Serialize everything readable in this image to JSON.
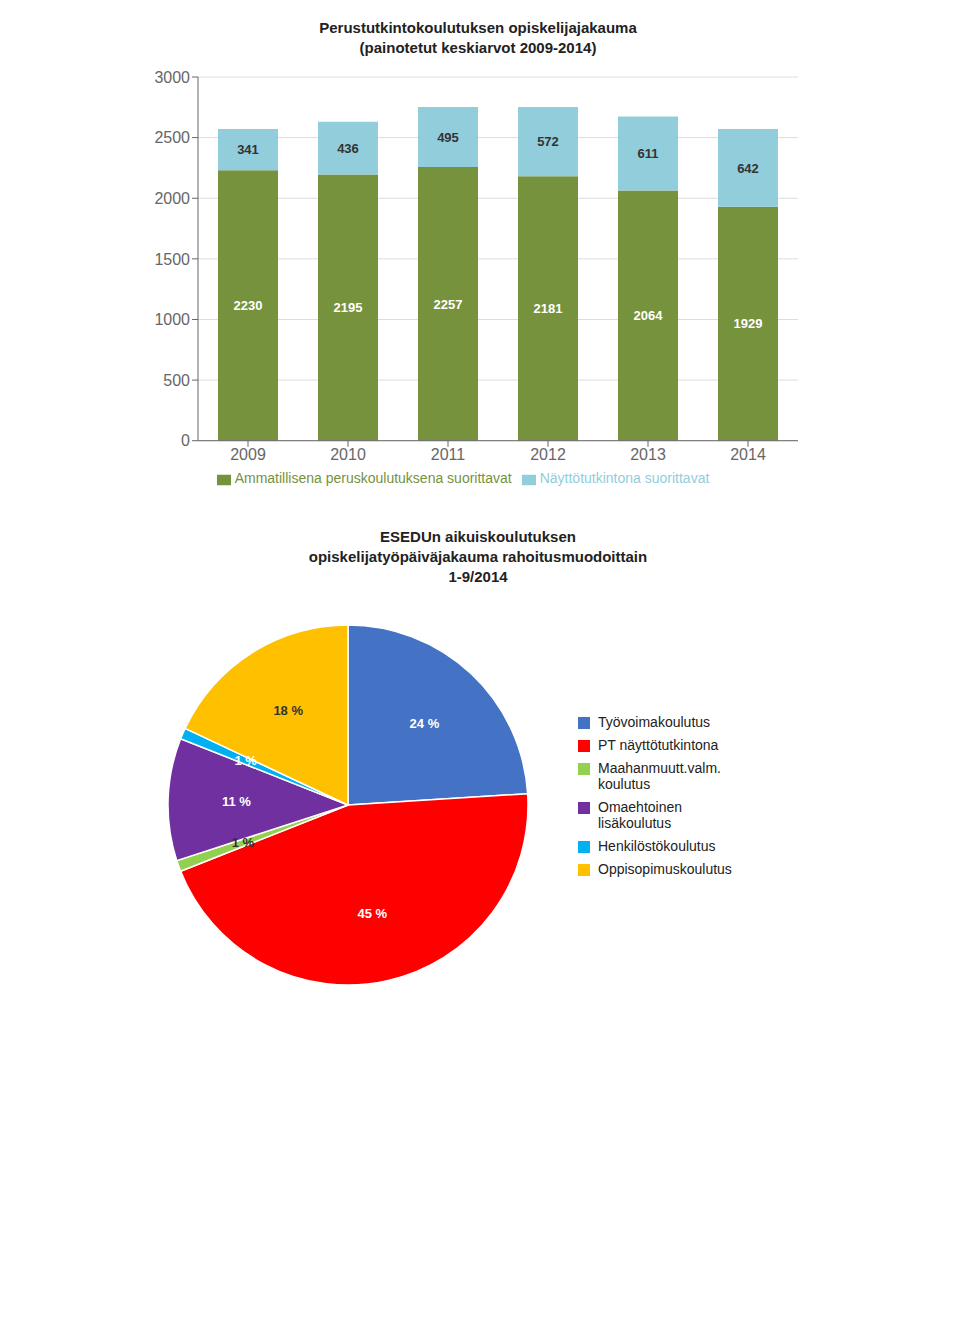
{
  "chart_data": [
    {
      "type": "bar",
      "title": "Perustutkintokoulutuksen opiskelijajakauma\n(painotetut keskiarvot 2009-2014)",
      "categories": [
        "2009",
        "2010",
        "2011",
        "2012",
        "2013",
        "2014"
      ],
      "series": [
        {
          "name": "Ammatillisena peruskoulutuksena suorittavat",
          "color": "#76923C",
          "values": [
            2230,
            2195,
            2257,
            2181,
            2064,
            1929
          ]
        },
        {
          "name": "Näyttötutkintona suorittavat",
          "color": "#92CDDC",
          "values": [
            341,
            436,
            495,
            572,
            611,
            642
          ]
        }
      ],
      "stacked": true,
      "ylim": [
        0,
        3000
      ],
      "yticks": [
        0,
        500,
        1000,
        1500,
        2000,
        2500,
        3000
      ],
      "grid": true,
      "data_labels": true,
      "legend": "bottom"
    },
    {
      "type": "pie",
      "title": "ESEDUn aikuiskoulutuksen\nopiskelijatyöpäiväjakauma rahoitusmuodoittain\n1-9/2014",
      "categories": [
        "Työvoimakoulutus",
        "PT näyttötutkintona",
        "Maahanmuutt.valm.\nkoulutus",
        "Omaehtoinen\nlisäkoulutus",
        "Henkilöstökoulutus",
        "Oppisopimuskoulutus"
      ],
      "values": [
        24,
        45,
        1,
        11,
        1,
        18
      ],
      "value_labels": [
        "24 %",
        "45 %",
        "1 %",
        "11 %",
        "1 %",
        "18 %"
      ],
      "colors": [
        "#4472C4",
        "#FF0000",
        "#92D050",
        "#7030A0",
        "#00B0F0",
        "#FFC000"
      ],
      "data_labels": true,
      "legend": "right"
    }
  ]
}
